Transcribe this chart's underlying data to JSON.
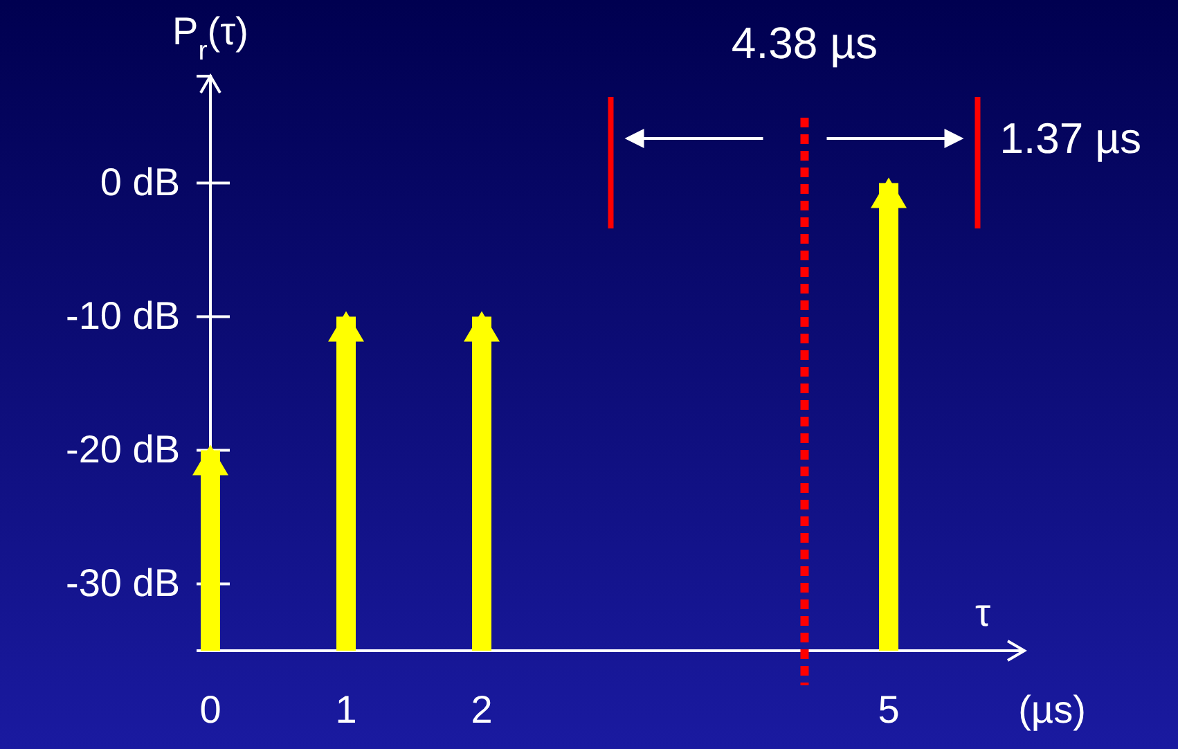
{
  "chart_data": {
    "type": "bar",
    "ylabel": "P$_{r}$(τ)",
    "xlabel": "(µs)",
    "color": "#ffff00",
    "x": [
      0,
      1,
      2,
      5
    ],
    "base": [
      -35,
      -35,
      -35,
      -35
    ],
    "values": [
      15,
      25,
      25,
      35
    ],
    "xlim": [
      0,
      6
    ],
    "xticks": [
      0,
      1,
      2,
      5
    ],
    "ylim": [
      -35,
      8
    ],
    "yticks": [
      {
        "value": 0,
        "label": "0 dB"
      },
      {
        "value": -10,
        "label": "-10 dB"
      },
      {
        "value": -20,
        "label": "-20 dB"
      },
      {
        "value": -30,
        "label": "-30 dB"
      }
    ],
    "ref_lines": [
      {
        "axis": "x",
        "value": 4.38,
        "label": "4.38 µs",
        "color": "#ff0000",
        "line_style": "dotted"
      }
    ],
    "annotations": [
      "τ",
      "1.37 µs"
    ],
    "grid": false
  }
}
